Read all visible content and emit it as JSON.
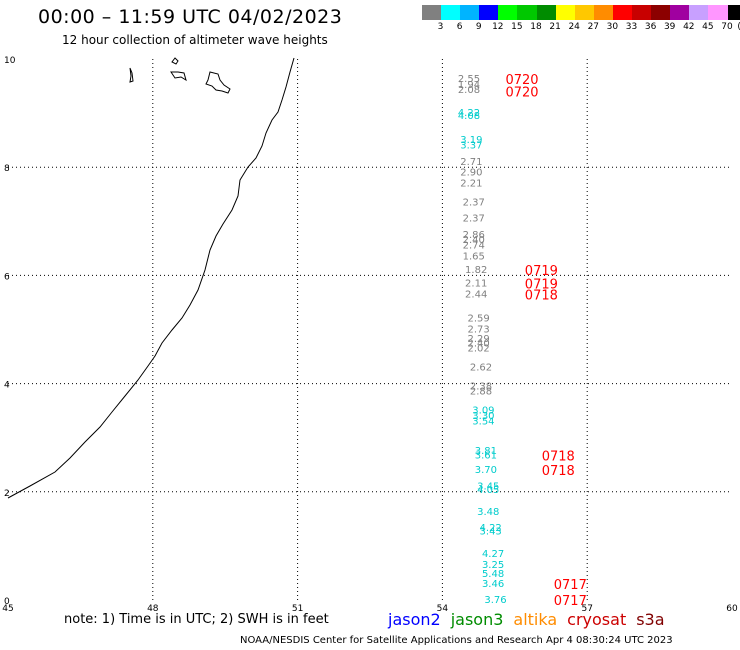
{
  "title": "00:00 – 11:59 UTC 04/02/2023",
  "subtitle": "12 hour collection of altimeter wave heights",
  "legend": {
    "colors": [
      "#808080",
      "#00ffff",
      "#00b4ff",
      "#0000ff",
      "#00ff00",
      "#00c800",
      "#008c00",
      "#ffff00",
      "#ffc800",
      "#ff8c00",
      "#ff0000",
      "#c80000",
      "#8c0000",
      "#a000a0",
      "#c8a0ff",
      "#ff96ff",
      "#000000"
    ],
    "labels": [
      "3",
      "6",
      "9",
      "12",
      "15",
      "18",
      "21",
      "24",
      "27",
      "30",
      "33",
      "36",
      "39",
      "42",
      "45",
      "70"
    ],
    "unit": "(ft)"
  },
  "axes": {
    "x_ticks": [
      "45",
      "48",
      "51",
      "54",
      "57",
      "60"
    ],
    "y_ticks": [
      "0",
      "2",
      "4",
      "6",
      "8",
      "10"
    ]
  },
  "observations": [
    {
      "lat": 9.63,
      "lon": 54.55,
      "swh": "2.55",
      "color": "#808080"
    },
    {
      "lat": 9.52,
      "lon": 54.55,
      "swh": "1.94",
      "color": "#808080"
    },
    {
      "lat": 9.43,
      "lon": 54.55,
      "swh": "2.08",
      "color": "#808080"
    },
    {
      "lat": 9.0,
      "lon": 54.55,
      "swh": "4.22",
      "color": "#00cccc"
    },
    {
      "lat": 8.95,
      "lon": 54.55,
      "swh": "4.08",
      "color": "#00cccc"
    },
    {
      "lat": 8.5,
      "lon": 54.6,
      "swh": "3.19",
      "color": "#00cccc"
    },
    {
      "lat": 8.4,
      "lon": 54.6,
      "swh": "3.37",
      "color": "#00cccc"
    },
    {
      "lat": 8.1,
      "lon": 54.6,
      "swh": "2.71",
      "color": "#808080"
    },
    {
      "lat": 7.9,
      "lon": 54.6,
      "swh": "2.90",
      "color": "#808080"
    },
    {
      "lat": 7.7,
      "lon": 54.6,
      "swh": "2.21",
      "color": "#808080"
    },
    {
      "lat": 7.35,
      "lon": 54.65,
      "swh": "2.37",
      "color": "#808080"
    },
    {
      "lat": 7.05,
      "lon": 54.65,
      "swh": "2.37",
      "color": "#808080"
    },
    {
      "lat": 6.75,
      "lon": 54.65,
      "swh": "2.86",
      "color": "#808080"
    },
    {
      "lat": 6.65,
      "lon": 54.65,
      "swh": "2.40",
      "color": "#808080"
    },
    {
      "lat": 6.55,
      "lon": 54.65,
      "swh": "2.74",
      "color": "#808080"
    },
    {
      "lat": 6.35,
      "lon": 54.65,
      "swh": "1.65",
      "color": "#808080"
    },
    {
      "lat": 6.1,
      "lon": 54.7,
      "swh": "1.82",
      "color": "#808080"
    },
    {
      "lat": 5.85,
      "lon": 54.7,
      "swh": "2.11",
      "color": "#808080"
    },
    {
      "lat": 5.65,
      "lon": 54.7,
      "swh": "2.44",
      "color": "#808080"
    },
    {
      "lat": 5.2,
      "lon": 54.75,
      "swh": "2.59",
      "color": "#808080"
    },
    {
      "lat": 5.0,
      "lon": 54.75,
      "swh": "2.73",
      "color": "#808080"
    },
    {
      "lat": 4.82,
      "lon": 54.75,
      "swh": "2.29",
      "color": "#808080"
    },
    {
      "lat": 4.74,
      "lon": 54.75,
      "swh": "2.40",
      "color": "#808080"
    },
    {
      "lat": 4.65,
      "lon": 54.75,
      "swh": "2.02",
      "color": "#808080"
    },
    {
      "lat": 4.3,
      "lon": 54.8,
      "swh": "2.62",
      "color": "#808080"
    },
    {
      "lat": 3.95,
      "lon": 54.8,
      "swh": "2.38",
      "color": "#808080"
    },
    {
      "lat": 3.85,
      "lon": 54.8,
      "swh": "2.88",
      "color": "#808080"
    },
    {
      "lat": 3.5,
      "lon": 54.85,
      "swh": "3.09",
      "color": "#00cccc"
    },
    {
      "lat": 3.4,
      "lon": 54.85,
      "swh": "3.30",
      "color": "#00cccc"
    },
    {
      "lat": 3.3,
      "lon": 54.85,
      "swh": "3.54",
      "color": "#00cccc"
    },
    {
      "lat": 2.75,
      "lon": 54.9,
      "swh": "3.81",
      "color": "#00cccc"
    },
    {
      "lat": 2.67,
      "lon": 54.9,
      "swh": "3.61",
      "color": "#00cccc"
    },
    {
      "lat": 2.4,
      "lon": 54.9,
      "swh": "3.70",
      "color": "#00cccc"
    },
    {
      "lat": 2.1,
      "lon": 54.95,
      "swh": "3.45",
      "color": "#00cccc"
    },
    {
      "lat": 2.03,
      "lon": 54.95,
      "swh": "4.05",
      "color": "#00cccc"
    },
    {
      "lat": 1.63,
      "lon": 54.95,
      "swh": "3.48",
      "color": "#00cccc"
    },
    {
      "lat": 1.33,
      "lon": 55.0,
      "swh": "4.22",
      "color": "#00cccc"
    },
    {
      "lat": 1.27,
      "lon": 55.0,
      "swh": "3.43",
      "color": "#00cccc"
    },
    {
      "lat": 0.85,
      "lon": 55.05,
      "swh": "4.27",
      "color": "#00cccc"
    },
    {
      "lat": 0.65,
      "lon": 55.05,
      "swh": "3.25",
      "color": "#00cccc"
    },
    {
      "lat": 0.48,
      "lon": 55.05,
      "swh": "5.48",
      "color": "#00cccc"
    },
    {
      "lat": 0.3,
      "lon": 55.05,
      "swh": "3.46",
      "color": "#00cccc"
    },
    {
      "lat": 0.0,
      "lon": 55.1,
      "swh": "3.76",
      "color": "#00cccc"
    }
  ],
  "time_labels": [
    {
      "lat": 9.63,
      "lon": 55.65,
      "text": "0720"
    },
    {
      "lat": 9.4,
      "lon": 55.65,
      "text": "0720"
    },
    {
      "lat": 6.1,
      "lon": 56.05,
      "text": "0719"
    },
    {
      "lat": 5.85,
      "lon": 56.05,
      "text": "0719"
    },
    {
      "lat": 5.65,
      "lon": 56.05,
      "text": "0718"
    },
    {
      "lat": 2.67,
      "lon": 56.4,
      "text": "0718"
    },
    {
      "lat": 2.4,
      "lon": 56.4,
      "text": "0718"
    },
    {
      "lat": 0.3,
      "lon": 56.65,
      "text": "0717"
    },
    {
      "lat": 0.0,
      "lon": 56.65,
      "text": "0717"
    }
  ],
  "satellites": [
    {
      "name": "jason2",
      "color": "#0000ff"
    },
    {
      "name": "jason3",
      "color": "#008c00"
    },
    {
      "name": "altika",
      "color": "#ff8c00"
    },
    {
      "name": "cryosat",
      "color": "#cc0000"
    },
    {
      "name": "s3a",
      "color": "#800000"
    }
  ],
  "note": "note: 1) Time is in UTC; 2) SWH is in feet",
  "credit": "NOAA/NESDIS Center for Satellite Applications and Research    Apr  4 08:30:24 UTC 2023"
}
